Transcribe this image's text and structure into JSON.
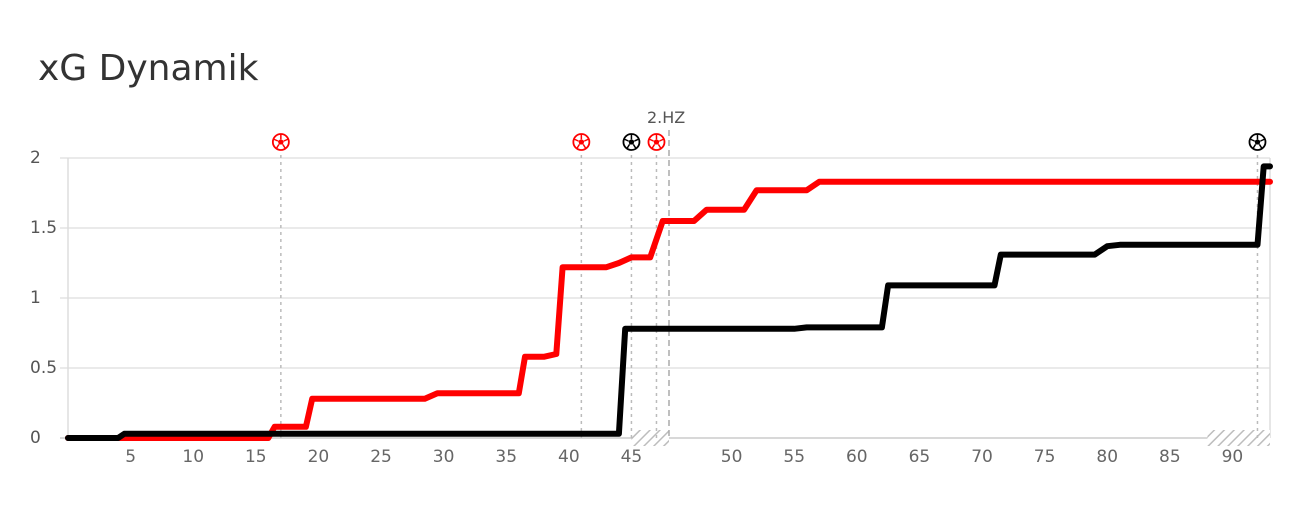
{
  "chart_data": {
    "type": "line",
    "title": "xG Dynamik",
    "xlim": [
      0,
      96
    ],
    "ylim": [
      0,
      2
    ],
    "yticks": [
      0,
      0.5,
      1,
      1.5,
      2
    ],
    "ytick_labels": [
      "0",
      "0.5",
      "1",
      "1.5",
      "2"
    ],
    "xticks": [
      5,
      10,
      15,
      20,
      25,
      30,
      35,
      40,
      45,
      50,
      55,
      60,
      65,
      70,
      75,
      80,
      85,
      90
    ],
    "xtick_labels": [
      "5",
      "10",
      "15",
      "20",
      "25",
      "30",
      "35",
      "40",
      "45",
      "50",
      "55",
      "60",
      "65",
      "70",
      "75",
      "80",
      "85",
      "90"
    ],
    "half_time_label": "2.HZ",
    "grid": true,
    "series": [
      {
        "color": "#ff0000",
        "points": [
          [
            0,
            0
          ],
          [
            16,
            0
          ],
          [
            16.5,
            0.08
          ],
          [
            19,
            0.08
          ],
          [
            19.5,
            0.28
          ],
          [
            26,
            0.28
          ],
          [
            28.5,
            0.28
          ],
          [
            29.5,
            0.32
          ],
          [
            36,
            0.32
          ],
          [
            36.5,
            0.58
          ],
          [
            38,
            0.58
          ],
          [
            39,
            0.6
          ],
          [
            39.5,
            1.22
          ],
          [
            42,
            1.22
          ],
          [
            43,
            1.22
          ],
          [
            44,
            1.25
          ],
          [
            45,
            1.29
          ],
          [
            46.5,
            1.29
          ],
          [
            47.5,
            1.55
          ],
          [
            50,
            1.55
          ],
          [
            51,
            1.63
          ],
          [
            54,
            1.63
          ],
          [
            55,
            1.77
          ],
          [
            59,
            1.77
          ],
          [
            60,
            1.83
          ],
          [
            96,
            1.83
          ]
        ]
      },
      {
        "color": "#000000",
        "points": [
          [
            0,
            0
          ],
          [
            4,
            0
          ],
          [
            4.5,
            0.03
          ],
          [
            44,
            0.03
          ],
          [
            44.5,
            0.78
          ],
          [
            58,
            0.78
          ],
          [
            59,
            0.79
          ],
          [
            65,
            0.79
          ],
          [
            65.5,
            1.09
          ],
          [
            74,
            1.09
          ],
          [
            74.5,
            1.31
          ],
          [
            82,
            1.31
          ],
          [
            83,
            1.37
          ],
          [
            84,
            1.38
          ],
          [
            95,
            1.38
          ],
          [
            95.5,
            1.94
          ],
          [
            96,
            1.94
          ]
        ]
      }
    ],
    "goals": [
      {
        "minute": 17,
        "color": "#ff0000"
      },
      {
        "minute": 41,
        "color": "#ff0000"
      },
      {
        "minute": 45,
        "color": "#000000"
      },
      {
        "minute": 47,
        "color": "#ff0000"
      },
      {
        "minute": 95,
        "color": "#000000"
      }
    ],
    "half_time_minute": 48,
    "stoppage_time": [
      {
        "from": 45,
        "to": 48
      },
      {
        "from": 91,
        "to": 96
      }
    ]
  }
}
